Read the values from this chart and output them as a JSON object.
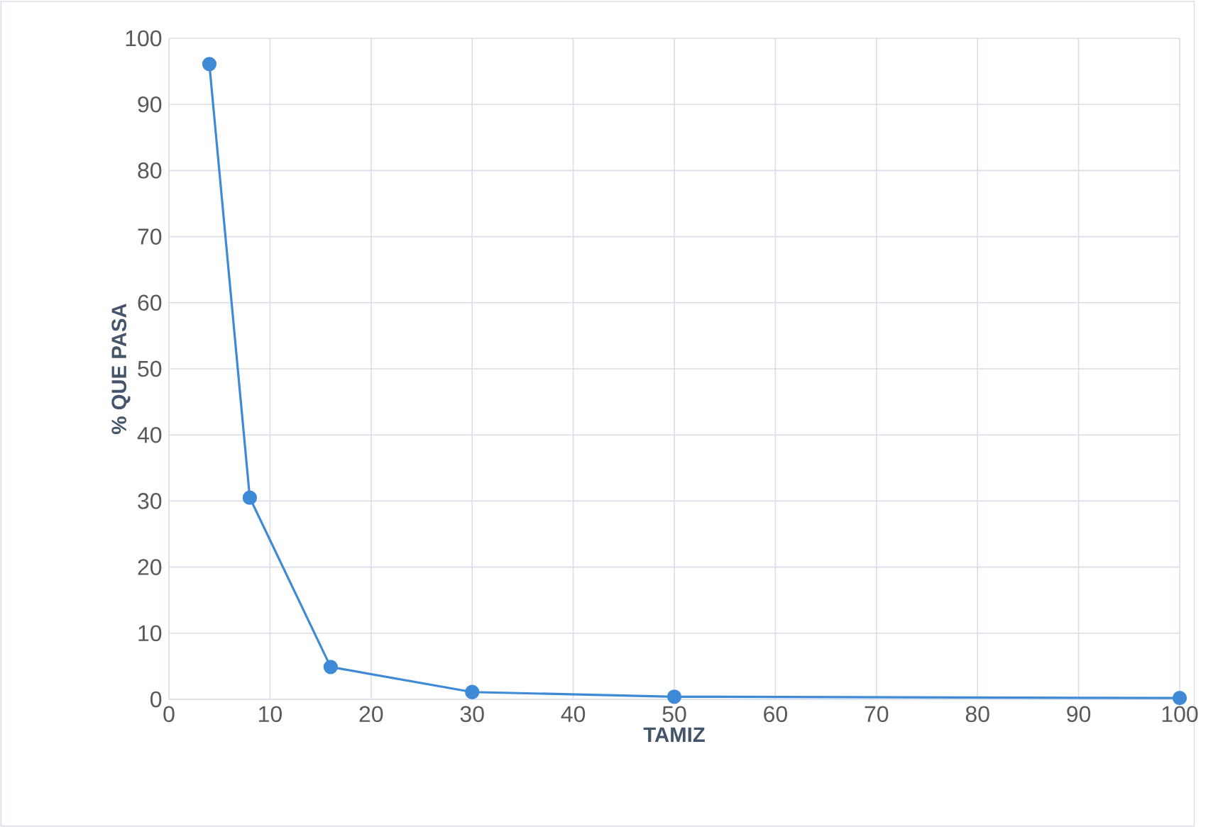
{
  "chart_data": {
    "type": "line",
    "xlabel": "TAMIZ",
    "ylabel": "% QUE PASA",
    "x": [
      4,
      8,
      16,
      30,
      50,
      100
    ],
    "series": [
      {
        "color": "#3f8ad6",
        "values": [
          96.1,
          30.5,
          4.9,
          1.1,
          0.4,
          0.2
        ]
      }
    ],
    "xlim": [
      0,
      100
    ],
    "xticks": [
      0,
      10,
      20,
      30,
      40,
      50,
      60,
      70,
      80,
      90,
      100
    ],
    "ylim": [
      0,
      100
    ],
    "yticks": [
      0,
      10,
      20,
      30,
      40,
      50,
      60,
      70,
      80,
      90,
      100
    ],
    "grid": true,
    "marker": "circle",
    "line_style": "solid"
  }
}
